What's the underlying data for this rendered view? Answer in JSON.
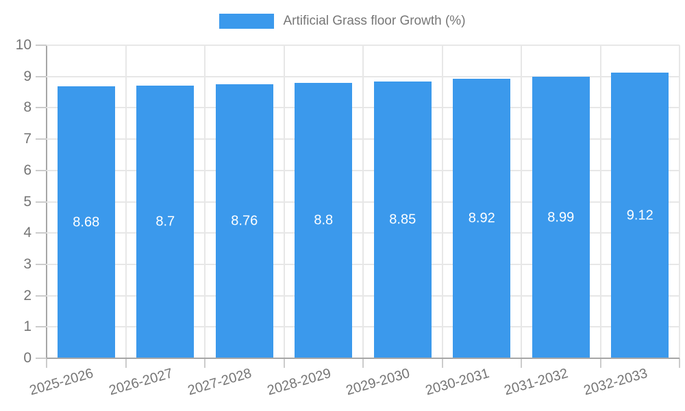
{
  "legend": {
    "label": "Artificial Grass floor Growth (%)"
  },
  "chart_data": {
    "type": "bar",
    "title": "",
    "xlabel": "",
    "ylabel": "",
    "categories": [
      "2025-2026",
      "2026-2027",
      "2027-2028",
      "2028-2029",
      "2029-2030",
      "2030-2031",
      "2031-2032",
      "2032-2033"
    ],
    "series": [
      {
        "name": "Artificial Grass floor Growth (%)",
        "values": [
          8.68,
          8.7,
          8.76,
          8.8,
          8.85,
          8.92,
          8.99,
          9.12
        ]
      }
    ],
    "value_labels": [
      "8.68",
      "8.7",
      "8.76",
      "8.8",
      "8.85",
      "8.92",
      "8.99",
      "9.12"
    ],
    "ylim": [
      0,
      10
    ],
    "ytick_step": 1,
    "ytick_labels": [
      "0",
      "1",
      "2",
      "3",
      "4",
      "5",
      "6",
      "7",
      "8",
      "9",
      "10"
    ],
    "grid": true,
    "legend_position": "top",
    "x_label_rotation_deg": -16
  },
  "colors": {
    "bar": "#3b99ec",
    "axis_text": "#757575",
    "legend_text": "#777777",
    "value_label_text": "#ffffff",
    "grid_line": "#e7e7e7",
    "axis_line": "#a6a6a6",
    "tick_mark": "#cccccc",
    "background": "#ffffff"
  }
}
